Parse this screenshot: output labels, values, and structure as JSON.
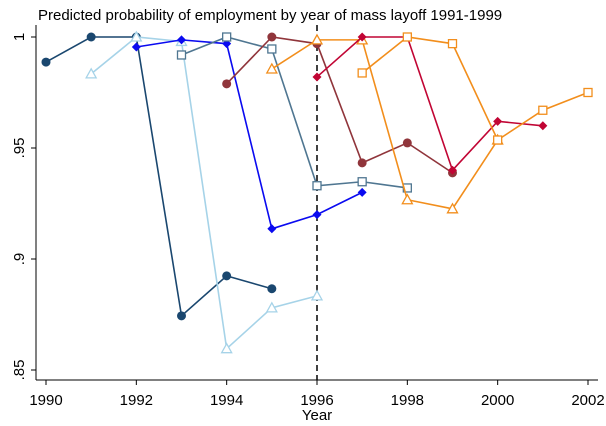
{
  "chart_data": {
    "type": "line",
    "title": "Predicted probability of employment by year of mass layoff 1991-1999",
    "x_label": "Year",
    "xlim": [
      1990,
      2002
    ],
    "xticks": [
      1990,
      1992,
      1994,
      1996,
      1998,
      2000,
      2002
    ],
    "ylim": [
      0.85,
      1
    ],
    "yticks": [
      {
        "value": 0.85,
        "label": ".85"
      },
      {
        "value": 0.9,
        "label": ".9"
      },
      {
        "value": 0.95,
        "label": ".95"
      },
      {
        "value": 1,
        "label": "1"
      }
    ],
    "reference_line": 1996,
    "series": [
      {
        "color": "#1a476f",
        "marker": "circle",
        "x": [
          1990,
          1991,
          1992,
          1993,
          1994,
          1995
        ],
        "values": [
          0.9887,
          1.0,
          1.0,
          0.8744,
          0.8924,
          0.8866
        ]
      },
      {
        "color": "#a6d3e8",
        "marker": "triangle",
        "x": [
          1991,
          1992,
          1993,
          1994,
          1995,
          1996
        ],
        "values": [
          0.9834,
          1.0,
          0.998,
          0.8596,
          0.878,
          0.8834
        ]
      },
      {
        "color": "#0a0af0",
        "marker": "diamond",
        "x": [
          1992,
          1993,
          1994,
          1995,
          1996,
          1997
        ],
        "values": [
          0.9955,
          0.9987,
          0.997,
          0.9136,
          0.92,
          0.93
        ]
      },
      {
        "color": "#4f7691",
        "marker": "square",
        "x": [
          1993,
          1994,
          1995,
          1996,
          1997,
          1998
        ],
        "values": [
          0.9919,
          1.0,
          0.9946,
          0.933,
          0.9348,
          0.932
        ]
      },
      {
        "color": "#90353b",
        "marker": "circle",
        "x": [
          1994,
          1995,
          1996,
          1997,
          1998,
          1999
        ],
        "values": [
          0.9789,
          1.0,
          0.997,
          0.9433,
          0.9523,
          0.9388
        ]
      },
      {
        "color": "#f28e1c",
        "marker": "triangle",
        "x": [
          1995,
          1996,
          1997,
          1998,
          1999,
          2000
        ],
        "values": [
          0.9856,
          0.9987,
          0.9987,
          0.9267,
          0.9226,
          0.9536
        ]
      },
      {
        "color": "#c10534",
        "marker": "diamond",
        "x": [
          1996,
          1997,
          1998,
          1999,
          2000,
          2001
        ],
        "values": [
          0.982,
          1.0,
          1.0,
          0.94,
          0.962,
          0.96
        ]
      },
      {
        "color": "#f28e1c",
        "marker": "square",
        "x": [
          1997,
          1998,
          1999,
          2000,
          2001,
          2002
        ],
        "values": [
          0.9838,
          1.0,
          0.997,
          0.9536,
          0.967,
          0.975
        ]
      }
    ]
  }
}
